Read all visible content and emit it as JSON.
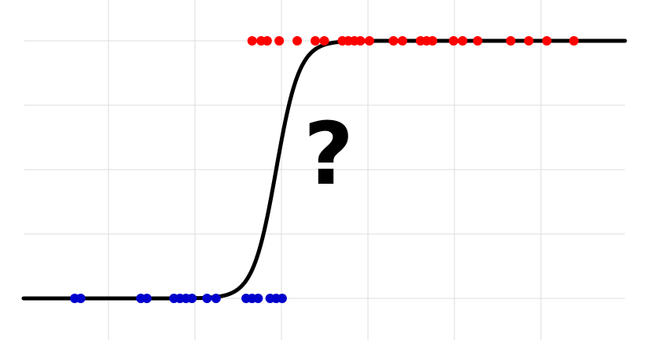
{
  "chart_data": {
    "type": "scatter",
    "grid": true,
    "xlim": [
      0,
      10
    ],
    "ylim": [
      0,
      1
    ],
    "annotation": "?",
    "colors": {
      "class0": "#0000cc",
      "class1": "#ff0000",
      "curve": "#000000",
      "grid": "#dddddd"
    },
    "series": [
      {
        "class": 0,
        "x": [
          0.85,
          0.95,
          1.95,
          2.05,
          2.5,
          2.6,
          2.7,
          2.8,
          3.05,
          3.2,
          3.7,
          3.8,
          3.9,
          4.1,
          4.2,
          4.3
        ],
        "y": [
          0,
          0,
          0,
          0,
          0,
          0,
          0,
          0,
          0,
          0,
          0,
          0,
          0,
          0,
          0,
          0
        ]
      },
      {
        "class": 1,
        "x": [
          3.8,
          3.95,
          4.05,
          4.25,
          4.55,
          4.85,
          5.0,
          5.3,
          5.4,
          5.5,
          5.6,
          5.75,
          6.15,
          6.3,
          6.6,
          6.7,
          6.8,
          7.15,
          7.3,
          7.55,
          8.1,
          8.4,
          8.7,
          9.15
        ],
        "y": [
          1,
          1,
          1,
          1,
          1,
          1,
          1,
          1,
          1,
          1,
          1,
          1,
          1,
          1,
          1,
          1,
          1,
          1,
          1,
          1,
          1,
          1,
          1,
          1
        ]
      }
    ],
    "curve": {
      "type": "logistic",
      "midpoint": 4.2,
      "steepness": 5.2
    }
  }
}
